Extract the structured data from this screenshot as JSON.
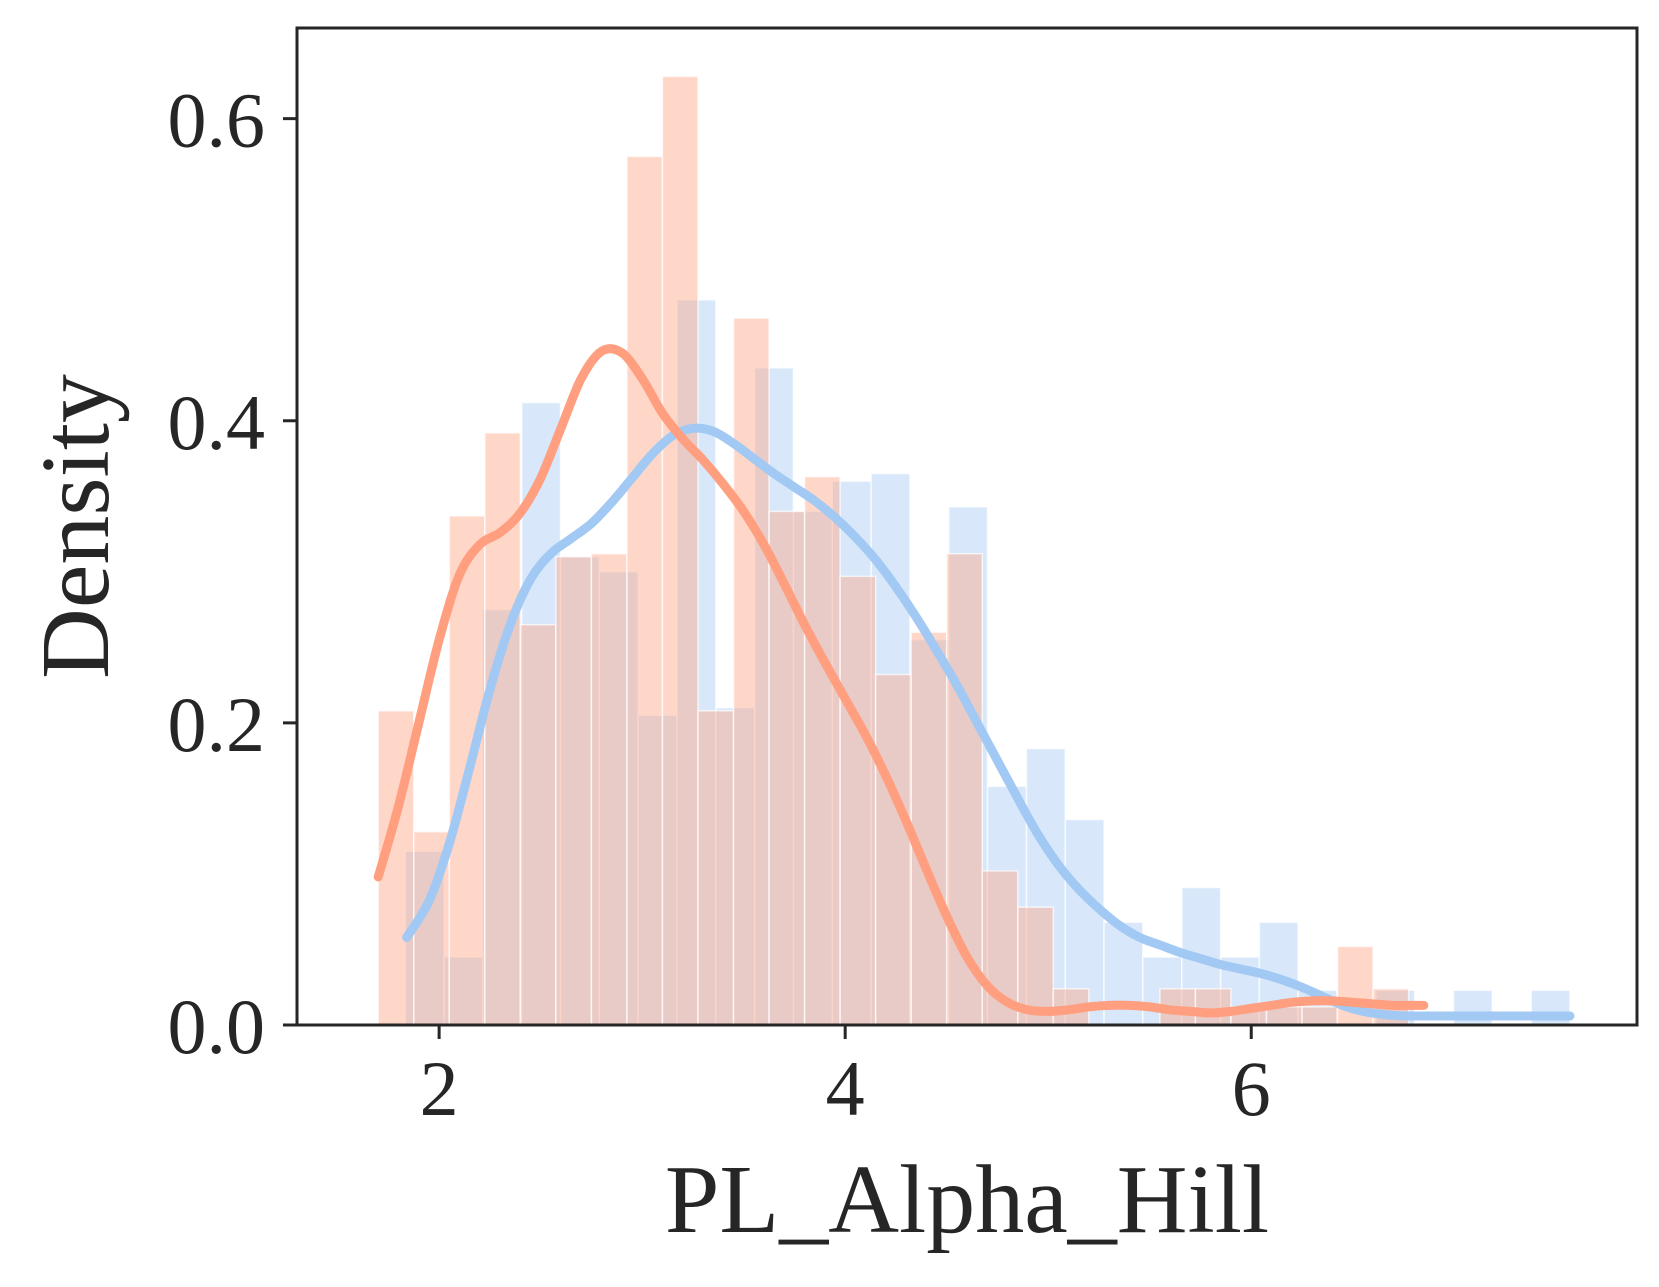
{
  "chart_data": {
    "type": "histogram",
    "xlabel": "PL_Alpha_Hill",
    "ylabel": "Density",
    "xlim": [
      1.3,
      7.9
    ],
    "ylim": [
      0,
      0.66
    ],
    "xticks": [
      2,
      4,
      6
    ],
    "xtick_labels": [
      "2",
      "4",
      "6"
    ],
    "yticks": [
      0.0,
      0.2,
      0.4,
      0.6
    ],
    "ytick_labels": [
      "0.0",
      "0.2",
      "0.4",
      "0.6"
    ],
    "grid": false,
    "series": [
      {
        "color": "#a1c9f4",
        "histogram": {
          "bin_edges": [
            1.833,
            2.024,
            2.215,
            2.407,
            2.598,
            2.789,
            2.98,
            3.172,
            3.363,
            3.554,
            3.745,
            3.937,
            4.128,
            4.319,
            4.51,
            4.701,
            4.893,
            5.084,
            5.275,
            5.466,
            5.658,
            5.849,
            6.04,
            6.231,
            6.422,
            6.614,
            6.805,
            6.996,
            7.187,
            7.379,
            7.57
          ],
          "densities": [
            0.115,
            0.045,
            0.275,
            0.412,
            0.31,
            0.3,
            0.205,
            0.48,
            0.21,
            0.435,
            0.34,
            0.36,
            0.365,
            0.255,
            0.343,
            0.158,
            0.183,
            0.136,
            0.068,
            0.045,
            0.091,
            0.045,
            0.068,
            0.023,
            0.0,
            0.023,
            0.0,
            0.023,
            0.0,
            0.023
          ]
        },
        "kde": {
          "x": [
            1.84,
            1.95,
            2.05,
            2.15,
            2.25,
            2.35,
            2.45,
            2.55,
            2.65,
            2.75,
            2.85,
            2.95,
            3.05,
            3.15,
            3.25,
            3.35,
            3.45,
            3.55,
            3.65,
            3.75,
            3.85,
            3.95,
            4.05,
            4.15,
            4.25,
            4.35,
            4.45,
            4.55,
            4.65,
            4.75,
            4.85,
            4.95,
            5.05,
            5.15,
            5.25,
            5.35,
            5.45,
            5.55,
            5.65,
            5.75,
            5.85,
            5.95,
            6.05,
            6.15,
            6.25,
            6.35,
            6.45,
            6.55,
            6.65,
            6.75,
            6.85,
            6.95,
            7.05,
            7.15,
            7.25,
            7.35,
            7.45,
            7.57
          ],
          "y": [
            0.058,
            0.082,
            0.12,
            0.17,
            0.222,
            0.265,
            0.295,
            0.312,
            0.322,
            0.332,
            0.346,
            0.362,
            0.378,
            0.39,
            0.395,
            0.393,
            0.385,
            0.375,
            0.365,
            0.356,
            0.347,
            0.336,
            0.323,
            0.308,
            0.29,
            0.27,
            0.248,
            0.225,
            0.2,
            0.175,
            0.15,
            0.126,
            0.106,
            0.09,
            0.077,
            0.066,
            0.058,
            0.053,
            0.048,
            0.044,
            0.04,
            0.037,
            0.034,
            0.03,
            0.025,
            0.019,
            0.013,
            0.009,
            0.007,
            0.006,
            0.006,
            0.006,
            0.006,
            0.006,
            0.006,
            0.006,
            0.006,
            0.006
          ]
        }
      },
      {
        "color": "#ff9f7f",
        "histogram": {
          "bin_edges": [
            1.7,
            1.875,
            2.05,
            2.225,
            2.4,
            2.575,
            2.75,
            2.925,
            3.1,
            3.275,
            3.45,
            3.625,
            3.8,
            3.975,
            4.15,
            4.325,
            4.5,
            4.675,
            4.85,
            5.025,
            5.2,
            5.375,
            5.55,
            5.725,
            5.9,
            6.075,
            6.25,
            6.425,
            6.6,
            6.775
          ],
          "densities": [
            0.208,
            0.128,
            0.337,
            0.392,
            0.265,
            0.31,
            0.312,
            0.575,
            0.628,
            0.208,
            0.468,
            0.34,
            0.363,
            0.297,
            0.232,
            0.26,
            0.312,
            0.102,
            0.078,
            0.024,
            0.0,
            0.0,
            0.024,
            0.024,
            0.012,
            0.012,
            0.012,
            0.052,
            0.024
          ]
        },
        "kde": {
          "x": [
            1.7,
            1.8,
            1.9,
            2.0,
            2.1,
            2.2,
            2.3,
            2.4,
            2.5,
            2.6,
            2.7,
            2.8,
            2.9,
            3.0,
            3.1,
            3.2,
            3.3,
            3.4,
            3.5,
            3.6,
            3.7,
            3.8,
            3.9,
            4.0,
            4.1,
            4.2,
            4.3,
            4.4,
            4.5,
            4.6,
            4.7,
            4.8,
            4.9,
            5.0,
            5.1,
            5.2,
            5.3,
            5.4,
            5.5,
            5.6,
            5.7,
            5.8,
            5.9,
            6.0,
            6.1,
            6.2,
            6.3,
            6.4,
            6.5,
            6.6,
            6.7,
            6.8,
            6.85
          ],
          "y": [
            0.098,
            0.145,
            0.2,
            0.255,
            0.298,
            0.318,
            0.326,
            0.339,
            0.362,
            0.395,
            0.428,
            0.446,
            0.445,
            0.428,
            0.405,
            0.388,
            0.374,
            0.358,
            0.34,
            0.318,
            0.292,
            0.265,
            0.24,
            0.216,
            0.192,
            0.165,
            0.135,
            0.103,
            0.072,
            0.045,
            0.026,
            0.015,
            0.01,
            0.009,
            0.01,
            0.012,
            0.013,
            0.013,
            0.012,
            0.01,
            0.009,
            0.008,
            0.009,
            0.011,
            0.013,
            0.015,
            0.016,
            0.016,
            0.015,
            0.014,
            0.013,
            0.013,
            0.013
          ]
        }
      }
    ]
  }
}
